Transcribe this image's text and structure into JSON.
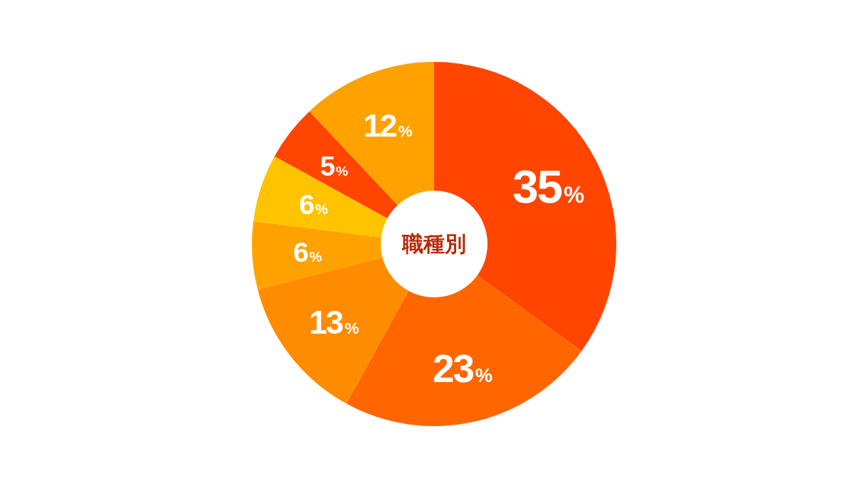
{
  "chart_data": {
    "type": "donut",
    "title": "職種別",
    "categories": [
      null,
      null,
      null,
      null,
      null,
      null,
      null
    ],
    "values": [
      35,
      23,
      13,
      6,
      6,
      5,
      12
    ],
    "colors": [
      "#ff4500",
      "#ff6600",
      "#ff8c00",
      "#ffa200",
      "#ffc300",
      "#ff4500",
      "#ffa200"
    ],
    "value_labels": [
      "35%",
      "23%",
      "13%",
      "6%",
      "6%",
      "5%",
      "12%"
    ]
  }
}
